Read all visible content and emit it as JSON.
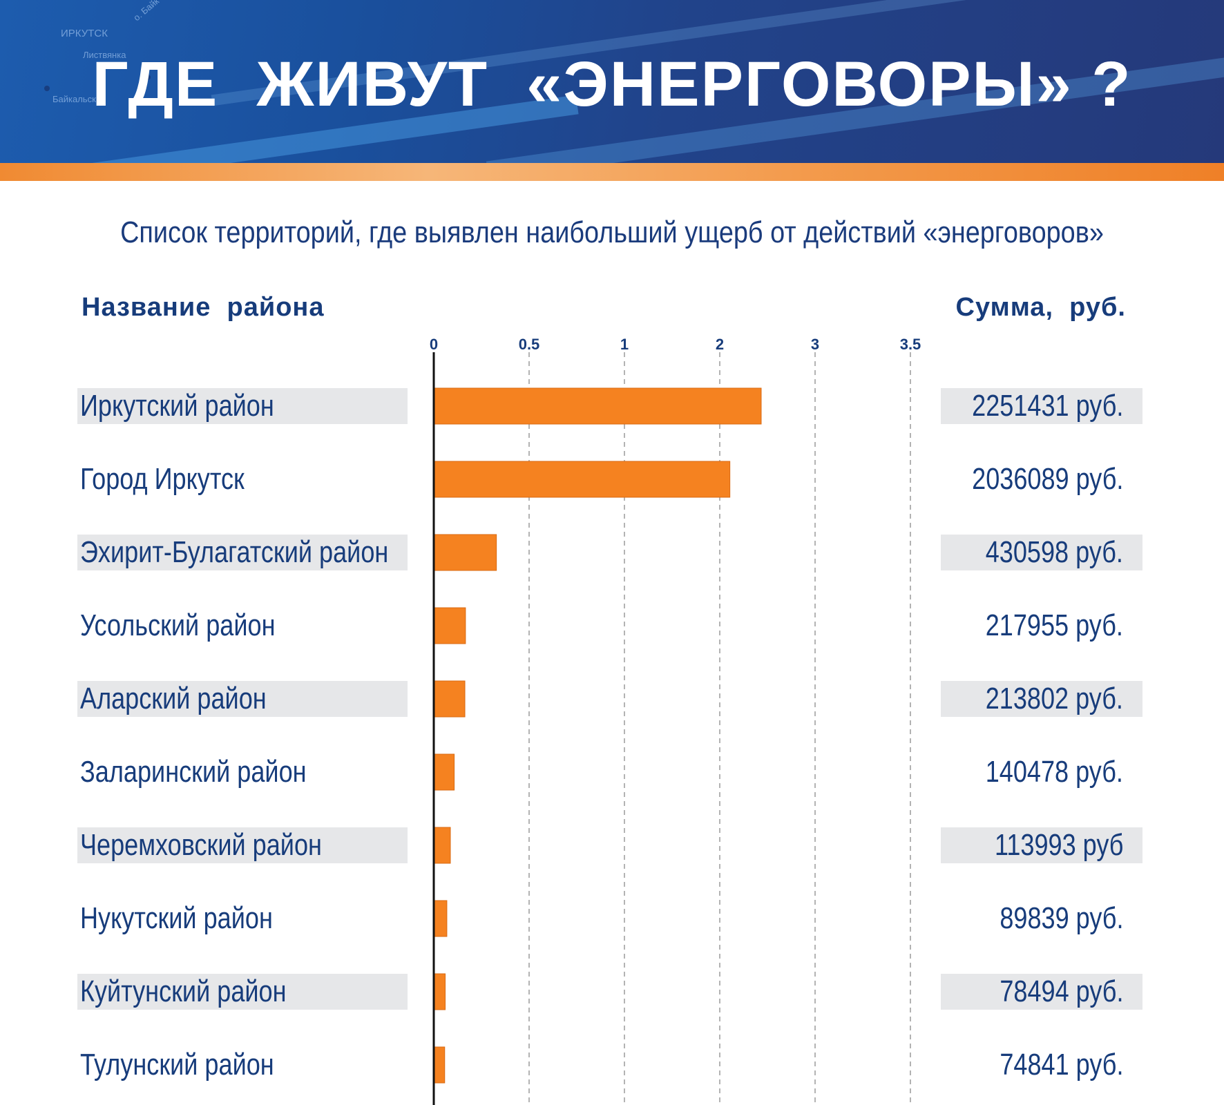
{
  "header": {
    "title": "ГДЕ  ЖИВУТ  «ЭНЕРГОВОРЫ» ?",
    "map_labels": [
      "ИРКУТСК",
      "Листвянка",
      "Байкальск",
      "о. Байк"
    ]
  },
  "subtitle": "Список территорий, где выявлен наибольший  ущерб от действий «энерговоров»",
  "columns": {
    "name_header": "Название  района",
    "sum_header": "Сумма,  руб."
  },
  "colors": {
    "bar": "#f58220",
    "text": "#173c7b",
    "row_bg": "#e6e7e9",
    "header_blue": "#21438a",
    "stripe_orange": "#f39b4d"
  },
  "chart_data": {
    "type": "bar",
    "orientation": "horizontal",
    "tick_labels": [
      "0",
      "0.5",
      "1",
      "2",
      "3",
      "3.5"
    ],
    "grid": true,
    "categories": [
      "Иркутский район",
      "Город Иркутск",
      "Эхирит-Булагатский район",
      "Усольский район",
      "Аларский район",
      "Заларинский район",
      "Черемховский район",
      "Нукутский район",
      "Куйтунский район",
      "Тулунский район"
    ],
    "values": [
      2251431,
      2036089,
      430598,
      217955,
      213802,
      140478,
      113993,
      89839,
      78494,
      74841
    ],
    "value_labels": [
      "2251431 руб.",
      "2036089 руб.",
      "430598 руб.",
      "217955 руб.",
      "213802 руб.",
      "140478 руб.",
      "113993 руб",
      "89839 руб.",
      "78494 руб.",
      "74841 руб."
    ],
    "shaded_rows": [
      0,
      2,
      4,
      6,
      8
    ]
  }
}
